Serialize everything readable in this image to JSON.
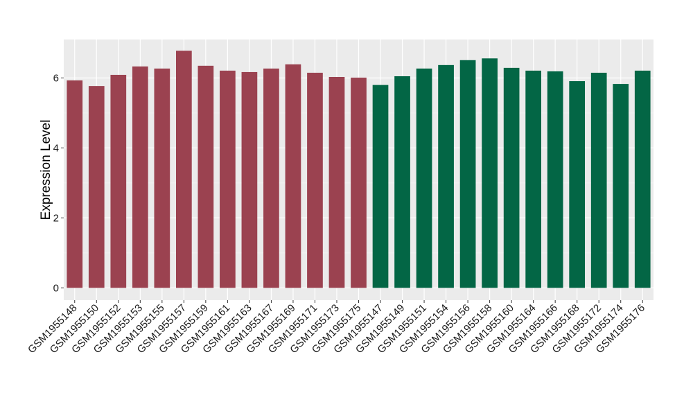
{
  "chart_data": {
    "type": "bar",
    "ylabel": "Expression Level",
    "xlabel": "",
    "ylim": [
      -0.35,
      7.1
    ],
    "yticks": [
      0,
      2,
      4,
      6
    ],
    "grid": true,
    "categories": [
      "GSM1955148",
      "GSM1955150",
      "GSM1955152",
      "GSM1955153",
      "GSM1955155",
      "GSM1955157",
      "GSM1955159",
      "GSM1955161",
      "GSM1955163",
      "GSM1955167",
      "GSM1955169",
      "GSM1955171",
      "GSM1955173",
      "GSM1955175",
      "GSM1955147",
      "GSM1955149",
      "GSM1955151",
      "GSM1955154",
      "GSM1955156",
      "GSM1955158",
      "GSM1955160",
      "GSM1955164",
      "GSM1955166",
      "GSM1955168",
      "GSM1955172",
      "GSM1955174",
      "GSM1955176"
    ],
    "values": [
      5.93,
      5.77,
      6.09,
      6.33,
      6.27,
      6.78,
      6.35,
      6.21,
      6.17,
      6.27,
      6.39,
      6.15,
      6.03,
      6.01,
      5.8,
      6.05,
      6.27,
      6.37,
      6.51,
      6.56,
      6.29,
      6.21,
      6.19,
      5.91,
      6.15,
      5.83,
      6.21
    ],
    "groups": [
      0,
      0,
      0,
      0,
      0,
      0,
      0,
      0,
      0,
      0,
      0,
      0,
      0,
      0,
      1,
      1,
      1,
      1,
      1,
      1,
      1,
      1,
      1,
      1,
      1,
      1,
      1
    ],
    "group_colors": [
      "#9b4250",
      "#036645"
    ]
  }
}
